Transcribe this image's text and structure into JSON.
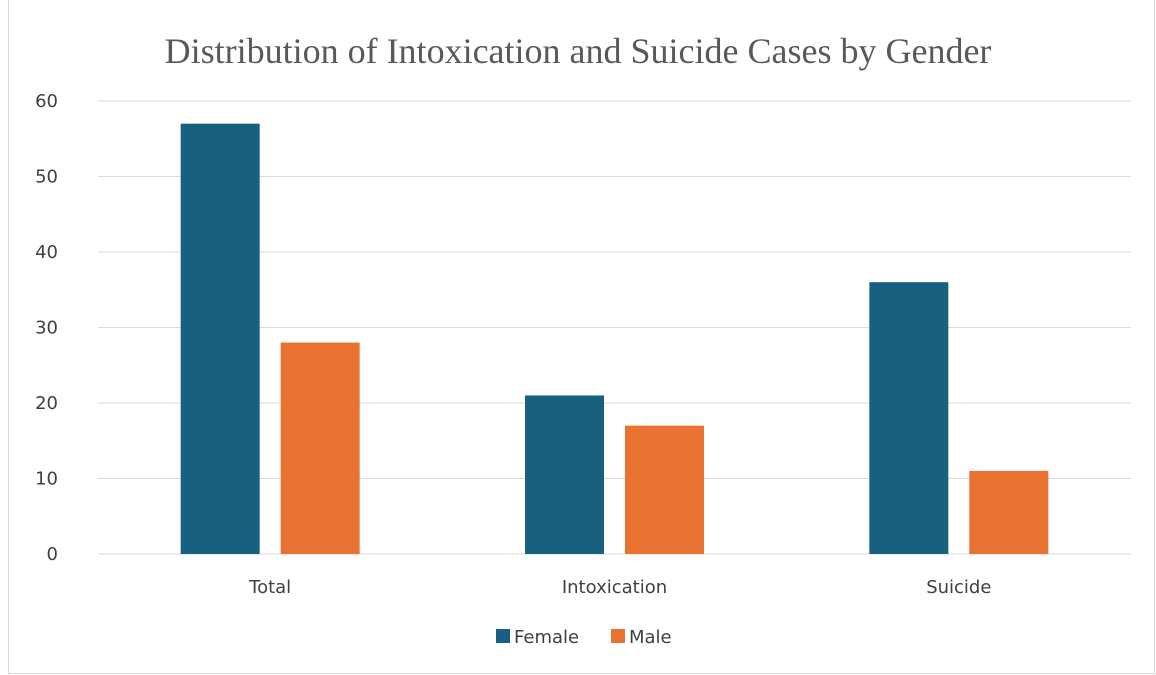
{
  "chart_data": {
    "type": "bar",
    "title": "Distribution of Intoxication and Suicide Cases by Gender",
    "xlabel": "",
    "ylabel": "",
    "categories": [
      "Total",
      "Intoxication",
      "Suicide"
    ],
    "series": [
      {
        "name": "Female",
        "color": "#17607f",
        "values": [
          57,
          21,
          36
        ]
      },
      {
        "name": "Male",
        "color": "#e97132",
        "values": [
          28,
          17,
          11
        ]
      }
    ],
    "ylim": [
      0,
      60
    ],
    "yticks": [
      0,
      10,
      20,
      30,
      40,
      50,
      60
    ],
    "grid": true,
    "legend_position": "bottom"
  }
}
